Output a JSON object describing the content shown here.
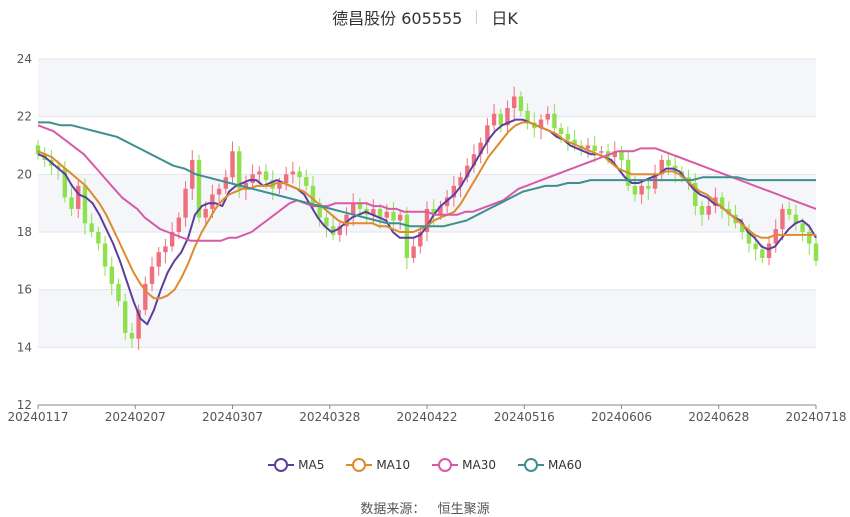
{
  "header": {
    "stock_name": "德昌股份 605555",
    "period": "日K"
  },
  "source": {
    "label": "数据来源：",
    "provider": "恒生聚源"
  },
  "chart_data": {
    "type": "candlestick",
    "ylim": [
      12,
      24
    ],
    "y_ticks": [
      "12",
      "14",
      "16",
      "18",
      "20",
      "22",
      "24"
    ],
    "x_tick_labels": [
      "20240117",
      "20240207",
      "20240307",
      "20240328",
      "20240422",
      "20240516",
      "20240606",
      "20240628",
      "20240718"
    ],
    "grid": "horizontal",
    "up_color": "#ef6f7f",
    "down_color": "#8ee04d",
    "closes": [
      20.7,
      20.5,
      20.3,
      20.2,
      19.2,
      18.8,
      19.6,
      18.3,
      18.0,
      17.6,
      16.8,
      16.2,
      15.6,
      14.5,
      14.3,
      15.3,
      16.2,
      16.8,
      17.3,
      17.5,
      18.0,
      18.5,
      19.5,
      20.5,
      18.5,
      18.8,
      19.3,
      19.5,
      19.9,
      20.8,
      19.5,
      19.7,
      20.0,
      20.1,
      19.8,
      19.5,
      19.7,
      20.0,
      20.1,
      19.9,
      19.6,
      19.0,
      18.5,
      18.2,
      17.9,
      18.2,
      18.6,
      19.0,
      18.8,
      18.6,
      18.8,
      18.5,
      18.7,
      18.4,
      18.6,
      17.1,
      17.5,
      18.0,
      18.8,
      18.6,
      18.9,
      19.2,
      19.6,
      19.9,
      20.3,
      20.7,
      21.1,
      21.7,
      22.1,
      21.7,
      22.3,
      22.7,
      22.2,
      21.8,
      21.6,
      21.9,
      22.1,
      21.6,
      21.4,
      21.2,
      21.0,
      20.9,
      21.0,
      20.8,
      20.8,
      20.6,
      20.8,
      20.5,
      19.6,
      19.3,
      19.6,
      19.5,
      20.0,
      20.5,
      20.3,
      20.1,
      19.9,
      19.7,
      18.9,
      18.6,
      18.9,
      19.2,
      18.8,
      18.6,
      18.3,
      18.0,
      17.6,
      17.4,
      17.1,
      17.6,
      18.1,
      18.8,
      18.6,
      18.3,
      18.0,
      17.6,
      17.0
    ],
    "series": [
      {
        "name": "MA5",
        "color": "#5b3f9e",
        "values": [
          20.7,
          20.6,
          20.4,
          20.2,
          20.0,
          19.6,
          19.3,
          19.2,
          19.0,
          18.6,
          18.1,
          17.6,
          17.0,
          16.3,
          15.6,
          15.0,
          14.8,
          15.3,
          16.0,
          16.6,
          17.0,
          17.3,
          17.8,
          18.6,
          18.9,
          19.0,
          19.0,
          18.9,
          19.4,
          19.6,
          19.7,
          19.8,
          19.8,
          19.6,
          19.7,
          19.8,
          19.7,
          19.6,
          19.5,
          19.3,
          18.9,
          18.5,
          18.2,
          18.0,
          18.1,
          18.3,
          18.5,
          18.6,
          18.7,
          18.6,
          18.5,
          18.4,
          18.0,
          17.8,
          17.8,
          17.8,
          17.9,
          18.2,
          18.6,
          18.9,
          19.1,
          19.3,
          19.6,
          20.0,
          20.4,
          20.8,
          21.2,
          21.5,
          21.7,
          21.8,
          21.9,
          21.9,
          21.8,
          21.7,
          21.6,
          21.5,
          21.3,
          21.2,
          21.0,
          20.9,
          20.8,
          20.7,
          20.7,
          20.6,
          20.5,
          20.2,
          19.9,
          19.7,
          19.7,
          19.8,
          19.9,
          20.0,
          20.2,
          20.2,
          20.1,
          19.8,
          19.5,
          19.3,
          19.2,
          19.0,
          18.9,
          18.7,
          18.5,
          18.4,
          18.0,
          17.8,
          17.5,
          17.4,
          17.5,
          17.8,
          18.1,
          18.3,
          18.4,
          18.2,
          17.8
        ]
      },
      {
        "name": "MA10",
        "color": "#e08a2e",
        "values": [
          20.8,
          20.7,
          20.6,
          20.4,
          20.2,
          20.0,
          19.8,
          19.6,
          19.3,
          19.0,
          18.6,
          18.1,
          17.6,
          17.1,
          16.6,
          16.2,
          15.9,
          15.7,
          15.7,
          15.8,
          16.0,
          16.4,
          16.9,
          17.5,
          18.0,
          18.4,
          18.8,
          19.1,
          19.3,
          19.4,
          19.5,
          19.5,
          19.6,
          19.6,
          19.6,
          19.7,
          19.7,
          19.6,
          19.5,
          19.4,
          19.2,
          19.0,
          18.8,
          18.6,
          18.4,
          18.3,
          18.3,
          18.3,
          18.3,
          18.3,
          18.2,
          18.2,
          18.1,
          18.0,
          18.0,
          18.0,
          18.1,
          18.2,
          18.4,
          18.5,
          18.6,
          18.7,
          19.0,
          19.4,
          19.8,
          20.2,
          20.6,
          20.9,
          21.2,
          21.5,
          21.7,
          21.8,
          21.8,
          21.7,
          21.6,
          21.5,
          21.4,
          21.2,
          21.1,
          21.0,
          20.9,
          20.8,
          20.7,
          20.6,
          20.4,
          20.2,
          20.1,
          20.0,
          20.0,
          20.0,
          20.0,
          20.0,
          20.1,
          20.1,
          20.0,
          19.8,
          19.6,
          19.4,
          19.3,
          19.1,
          18.9,
          18.7,
          18.5,
          18.3,
          18.1,
          17.9,
          17.8,
          17.8,
          17.9,
          17.9,
          17.9,
          17.9,
          17.9,
          17.9,
          17.9
        ]
      },
      {
        "name": "MA30",
        "color": "#d65aa6",
        "values": [
          21.7,
          21.6,
          21.5,
          21.3,
          21.1,
          20.9,
          20.7,
          20.4,
          20.1,
          19.8,
          19.5,
          19.2,
          19.0,
          18.8,
          18.5,
          18.3,
          18.1,
          18.0,
          17.9,
          17.8,
          17.7,
          17.7,
          17.7,
          17.7,
          17.7,
          17.8,
          17.8,
          17.9,
          18.0,
          18.2,
          18.4,
          18.6,
          18.8,
          19.0,
          19.1,
          19.0,
          18.9,
          18.9,
          18.9,
          19.0,
          19.0,
          19.0,
          19.0,
          19.0,
          18.9,
          18.9,
          18.8,
          18.8,
          18.7,
          18.7,
          18.7,
          18.7,
          18.6,
          18.6,
          18.6,
          18.6,
          18.7,
          18.7,
          18.8,
          18.9,
          19.0,
          19.1,
          19.3,
          19.5,
          19.6,
          19.7,
          19.8,
          19.9,
          20.0,
          20.1,
          20.2,
          20.3,
          20.4,
          20.5,
          20.6,
          20.7,
          20.8,
          20.8,
          20.8,
          20.9,
          20.9,
          20.9,
          20.8,
          20.7,
          20.6,
          20.5,
          20.4,
          20.3,
          20.2,
          20.1,
          20.0,
          19.9,
          19.8,
          19.7,
          19.6,
          19.5,
          19.4,
          19.3,
          19.2,
          19.1,
          19.0,
          18.9,
          18.8
        ]
      },
      {
        "name": "MA60",
        "color": "#3f8f8f",
        "values": [
          21.8,
          21.8,
          21.7,
          21.7,
          21.6,
          21.5,
          21.4,
          21.3,
          21.1,
          20.9,
          20.7,
          20.5,
          20.3,
          20.2,
          20.0,
          19.9,
          19.8,
          19.7,
          19.6,
          19.5,
          19.4,
          19.3,
          19.2,
          19.1,
          19.0,
          18.9,
          18.8,
          18.7,
          18.6,
          18.5,
          18.4,
          18.3,
          18.3,
          18.2,
          18.2,
          18.2,
          18.2,
          18.3,
          18.4,
          18.6,
          18.8,
          19.0,
          19.2,
          19.4,
          19.5,
          19.6,
          19.6,
          19.7,
          19.7,
          19.8,
          19.8,
          19.8,
          19.8,
          19.8,
          19.8,
          19.8,
          19.8,
          19.8,
          19.8,
          19.9,
          19.9,
          19.9,
          19.9,
          19.8,
          19.8,
          19.8,
          19.8,
          19.8,
          19.8,
          19.8
        ]
      }
    ],
    "legend_position": "bottom"
  }
}
